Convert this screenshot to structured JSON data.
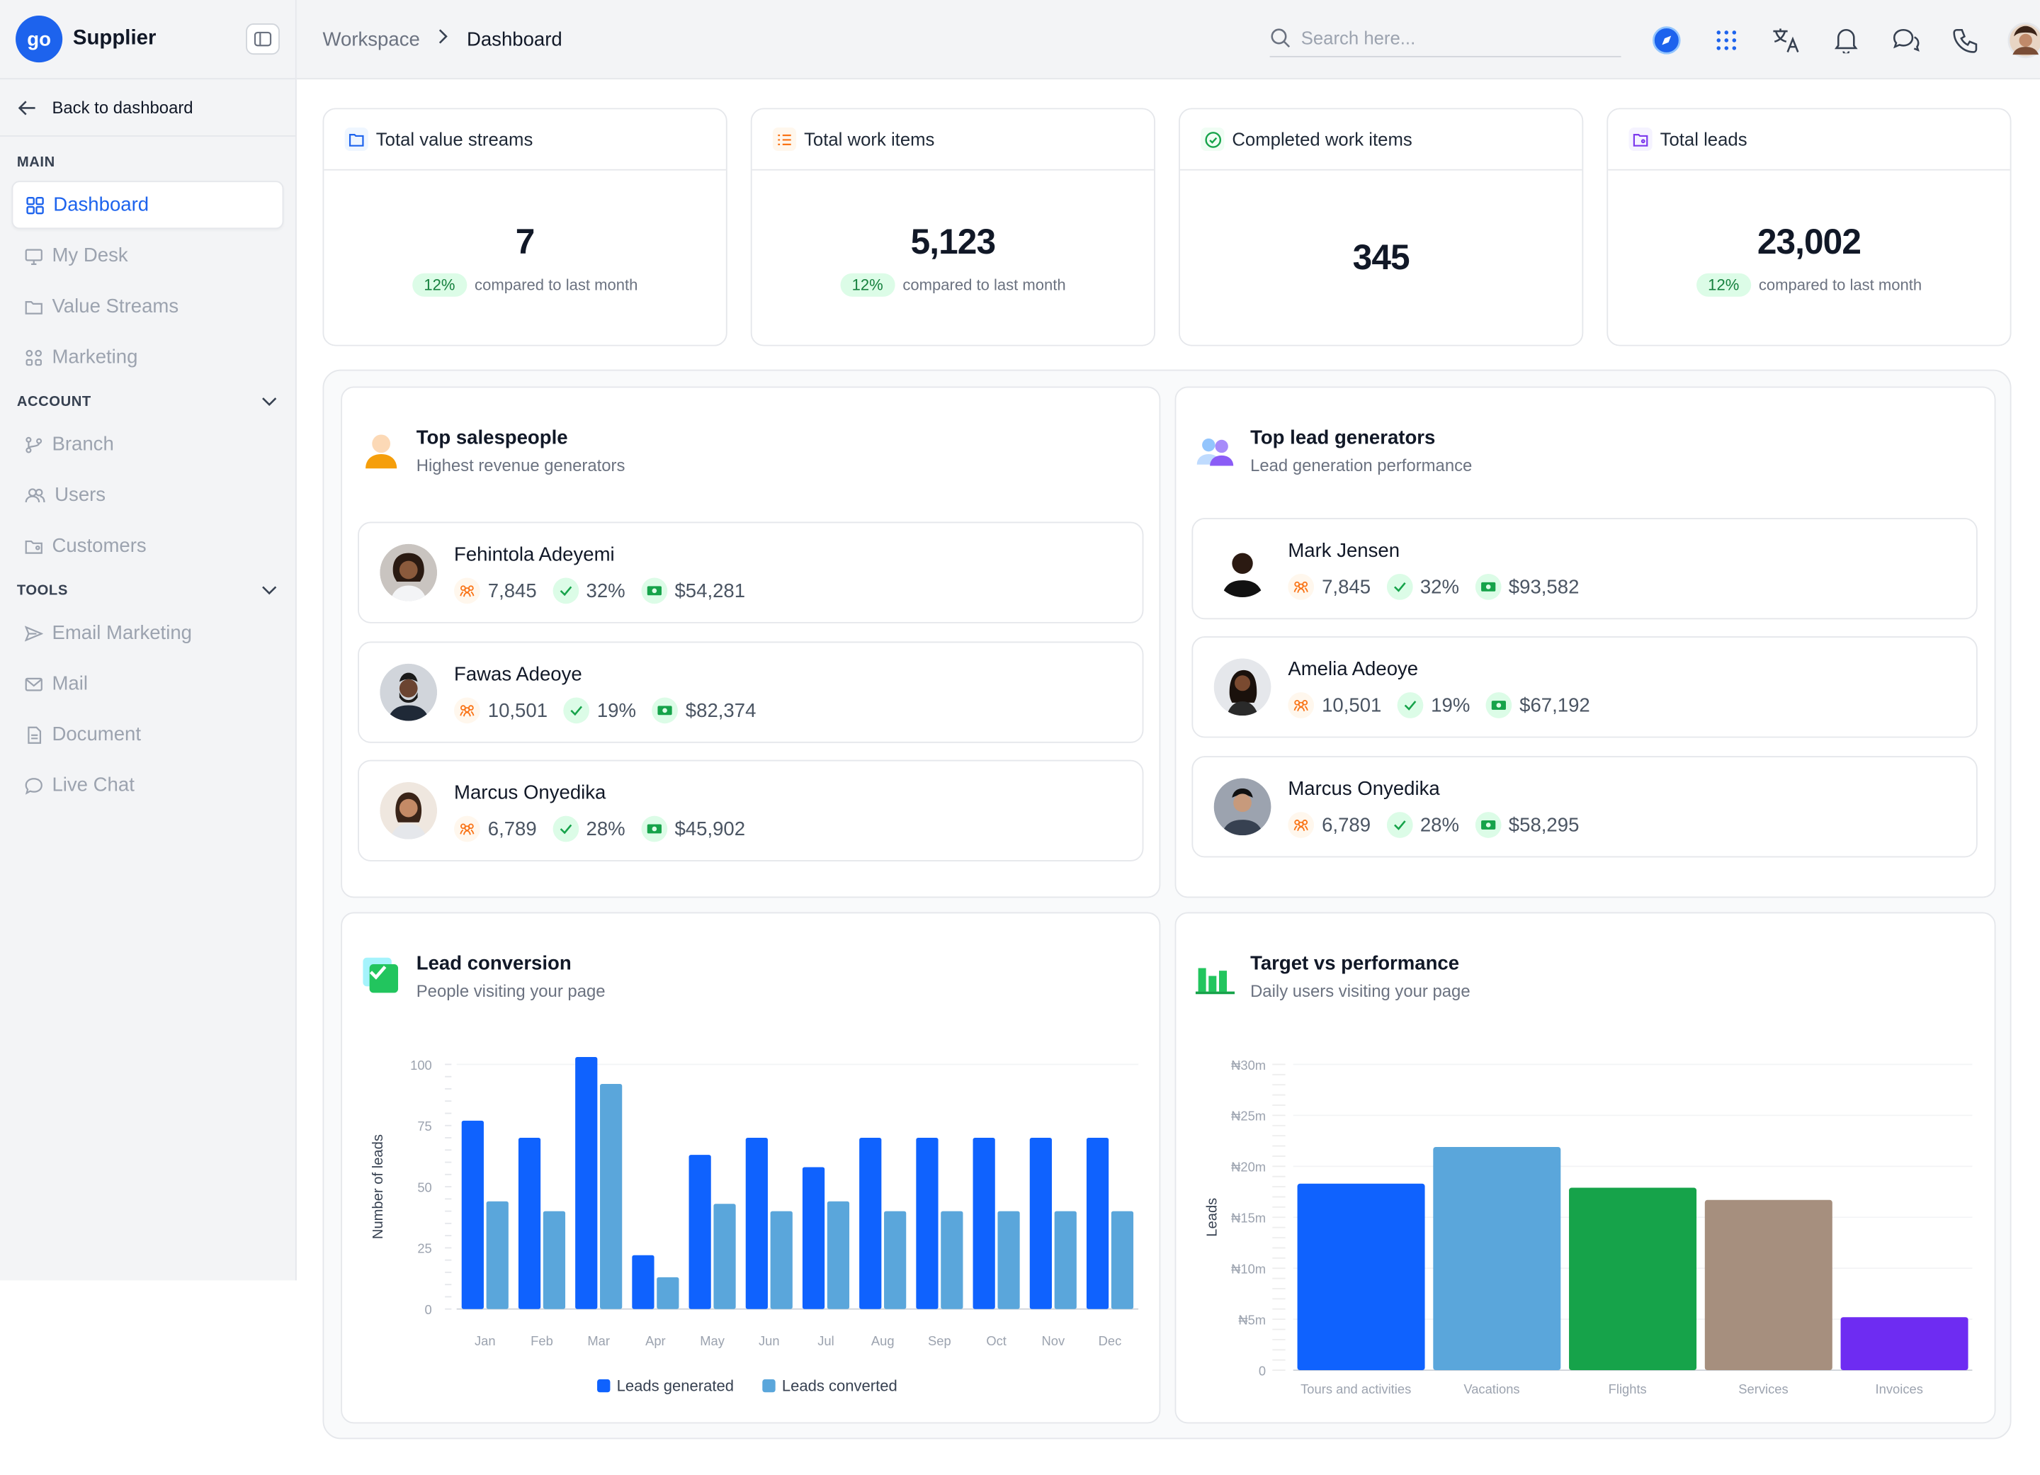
{
  "app": {
    "name": "Supplier",
    "logo_text": "go"
  },
  "sidebar": {
    "back_label": "Back to dashboard",
    "sections": [
      {
        "title": "MAIN",
        "items": [
          {
            "label": "Dashboard",
            "icon": "grid-icon",
            "active": true
          },
          {
            "label": "My Desk",
            "icon": "desktop-icon"
          },
          {
            "label": "Value Streams",
            "icon": "folder-icon"
          },
          {
            "label": "Marketing",
            "icon": "people-icon"
          }
        ]
      },
      {
        "title": "ACCOUNT",
        "items": [
          {
            "label": "Branch",
            "icon": "branch-icon"
          },
          {
            "label": "Users",
            "icon": "users-icon"
          },
          {
            "label": "Customers",
            "icon": "folder-user-icon"
          }
        ]
      },
      {
        "title": "TOOLS",
        "items": [
          {
            "label": "Email Marketing",
            "icon": "send-icon"
          },
          {
            "label": "Mail",
            "icon": "mail-icon"
          },
          {
            "label": "Document",
            "icon": "document-icon"
          },
          {
            "label": "Live Chat",
            "icon": "chat-icon"
          }
        ]
      }
    ]
  },
  "header": {
    "breadcrumb": [
      "Workspace",
      "Dashboard"
    ],
    "search_placeholder": "Search here...",
    "icons": [
      "compass-icon",
      "apps-grid-icon",
      "translate-icon",
      "bell-icon",
      "messages-icon",
      "phone-icon",
      "user-avatar"
    ]
  },
  "stats": [
    {
      "title": "Total value streams",
      "value": "7",
      "change": "12%",
      "change_text": "compared to last month",
      "icon": "folder-icon",
      "color": "#1d63ed"
    },
    {
      "title": "Total work items",
      "value": "5,123",
      "change": "12%",
      "change_text": "compared to last month",
      "icon": "list-icon",
      "color": "#f97316"
    },
    {
      "title": "Completed work items",
      "value": "345",
      "icon": "check-circle-icon",
      "color": "#16a34a"
    },
    {
      "title": "Total leads",
      "value": "23,002",
      "change": "12%",
      "change_text": "compared to last month",
      "icon": "folder-user-icon",
      "color": "#7c3aed"
    }
  ],
  "top_salespeople": {
    "title": "Top salespeople",
    "subtitle": "Highest revenue generators",
    "people": [
      {
        "name": "Fehintola Adeyemi",
        "leads": "7,845",
        "rate": "32%",
        "revenue": "$54,281"
      },
      {
        "name": "Fawas Adeoye",
        "leads": "10,501",
        "rate": "19%",
        "revenue": "$82,374"
      },
      {
        "name": "Marcus Onyedika",
        "leads": "6,789",
        "rate": "28%",
        "revenue": "$45,902"
      }
    ]
  },
  "top_lead_generators": {
    "title": "Top lead generators",
    "subtitle": "Lead generation performance",
    "people": [
      {
        "name": "Mark Jensen",
        "leads": "7,845",
        "rate": "32%",
        "revenue": "$93,582"
      },
      {
        "name": "Amelia Adeoye",
        "leads": "10,501",
        "rate": "19%",
        "revenue": "$67,192"
      },
      {
        "name": "Marcus Onyedika",
        "leads": "6,789",
        "rate": "28%",
        "revenue": "$58,295"
      }
    ]
  },
  "lead_conversion": {
    "title": "Lead conversion",
    "subtitle": "People visiting your page"
  },
  "target_performance": {
    "title": "Target vs performance",
    "subtitle": "Daily users visiting your page"
  },
  "chart_data": [
    {
      "type": "bar",
      "ylabel": "Number of leads",
      "categories": [
        "Jan",
        "Feb",
        "Mar",
        "Apr",
        "May",
        "Jun",
        "Jul",
        "Aug",
        "Sep",
        "Oct",
        "Nov",
        "Dec"
      ],
      "ylim": [
        0,
        100
      ],
      "yticks": [
        "0",
        "25",
        "50",
        "75",
        "100"
      ],
      "series": [
        {
          "name": "Leads generated",
          "color": "#0f62fe",
          "values": [
            77,
            70,
            103,
            22,
            63,
            70,
            58,
            70,
            70,
            70,
            70,
            70
          ]
        },
        {
          "name": "Leads converted",
          "color": "#5aa6db",
          "values": [
            44,
            40,
            92,
            13,
            43,
            40,
            44,
            40,
            40,
            40,
            40,
            40
          ]
        }
      ],
      "legend": "bottom"
    },
    {
      "type": "bar",
      "ylabel": "Leads",
      "categories": [
        "Tours and activities",
        "Vacations",
        "Flights",
        "Services",
        "Invoices"
      ],
      "ylim": [
        0,
        30
      ],
      "yticks": [
        "0",
        "₦5m",
        "₦10m",
        "₦15m",
        "₦20m",
        "₦25m",
        "₦30m"
      ],
      "values": [
        18.3,
        21.9,
        17.9,
        16.7,
        5.2
      ],
      "colors": [
        "#0f62fe",
        "#5aa6db",
        "#16a34a",
        "#a68f7e",
        "#6e2cf2"
      ]
    }
  ]
}
